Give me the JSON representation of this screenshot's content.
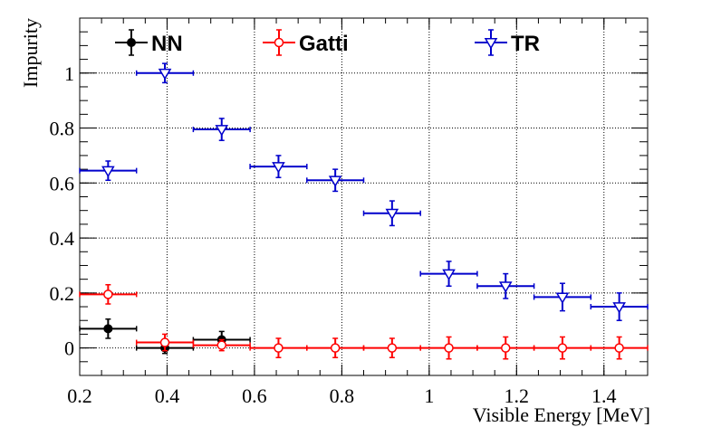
{
  "chart_data": {
    "type": "scatter",
    "title": "",
    "xlabel": "Visible Energy [MeV]",
    "ylabel": "Impurity",
    "xlim": [
      0.2,
      1.5
    ],
    "ylim": [
      -0.1,
      1.2
    ],
    "grid": true,
    "x_ticks": [
      "0.2",
      "0.4",
      "0.6",
      "0.8",
      "1",
      "1.2",
      "1.4"
    ],
    "y_ticks": [
      "0",
      "0.2",
      "0.4",
      "0.6",
      "0.8",
      "1"
    ],
    "legend_position": "top",
    "series": [
      {
        "name": "NN",
        "color": "#000000",
        "marker": "filled-circle",
        "x": [
          0.265,
          0.395,
          0.525
        ],
        "xerr": 0.065,
        "y": [
          0.07,
          0.0,
          0.03
        ],
        "yerr": [
          0.035,
          0.02,
          0.03
        ]
      },
      {
        "name": "Gatti",
        "color": "#ff0000",
        "marker": "open-circle",
        "x": [
          0.265,
          0.395,
          0.525,
          0.655,
          0.785,
          0.915,
          1.045,
          1.175,
          1.305,
          1.435
        ],
        "xerr": 0.065,
        "y": [
          0.195,
          0.02,
          0.01,
          0.0,
          0.0,
          0.0,
          0.0,
          0.0,
          0.0,
          0.0
        ],
        "yerr": [
          0.035,
          0.03,
          0.02,
          0.035,
          0.035,
          0.035,
          0.04,
          0.04,
          0.04,
          0.04
        ]
      },
      {
        "name": "TR",
        "color": "#0000cc",
        "marker": "open-triangle-down",
        "x": [
          0.265,
          0.395,
          0.525,
          0.655,
          0.785,
          0.915,
          1.045,
          1.175,
          1.305,
          1.435
        ],
        "xerr": 0.065,
        "y": [
          0.645,
          1.0,
          0.795,
          0.66,
          0.61,
          0.49,
          0.27,
          0.225,
          0.185,
          0.15
        ],
        "yerr": [
          0.035,
          0.035,
          0.04,
          0.04,
          0.04,
          0.045,
          0.045,
          0.045,
          0.05,
          0.05
        ]
      }
    ]
  }
}
